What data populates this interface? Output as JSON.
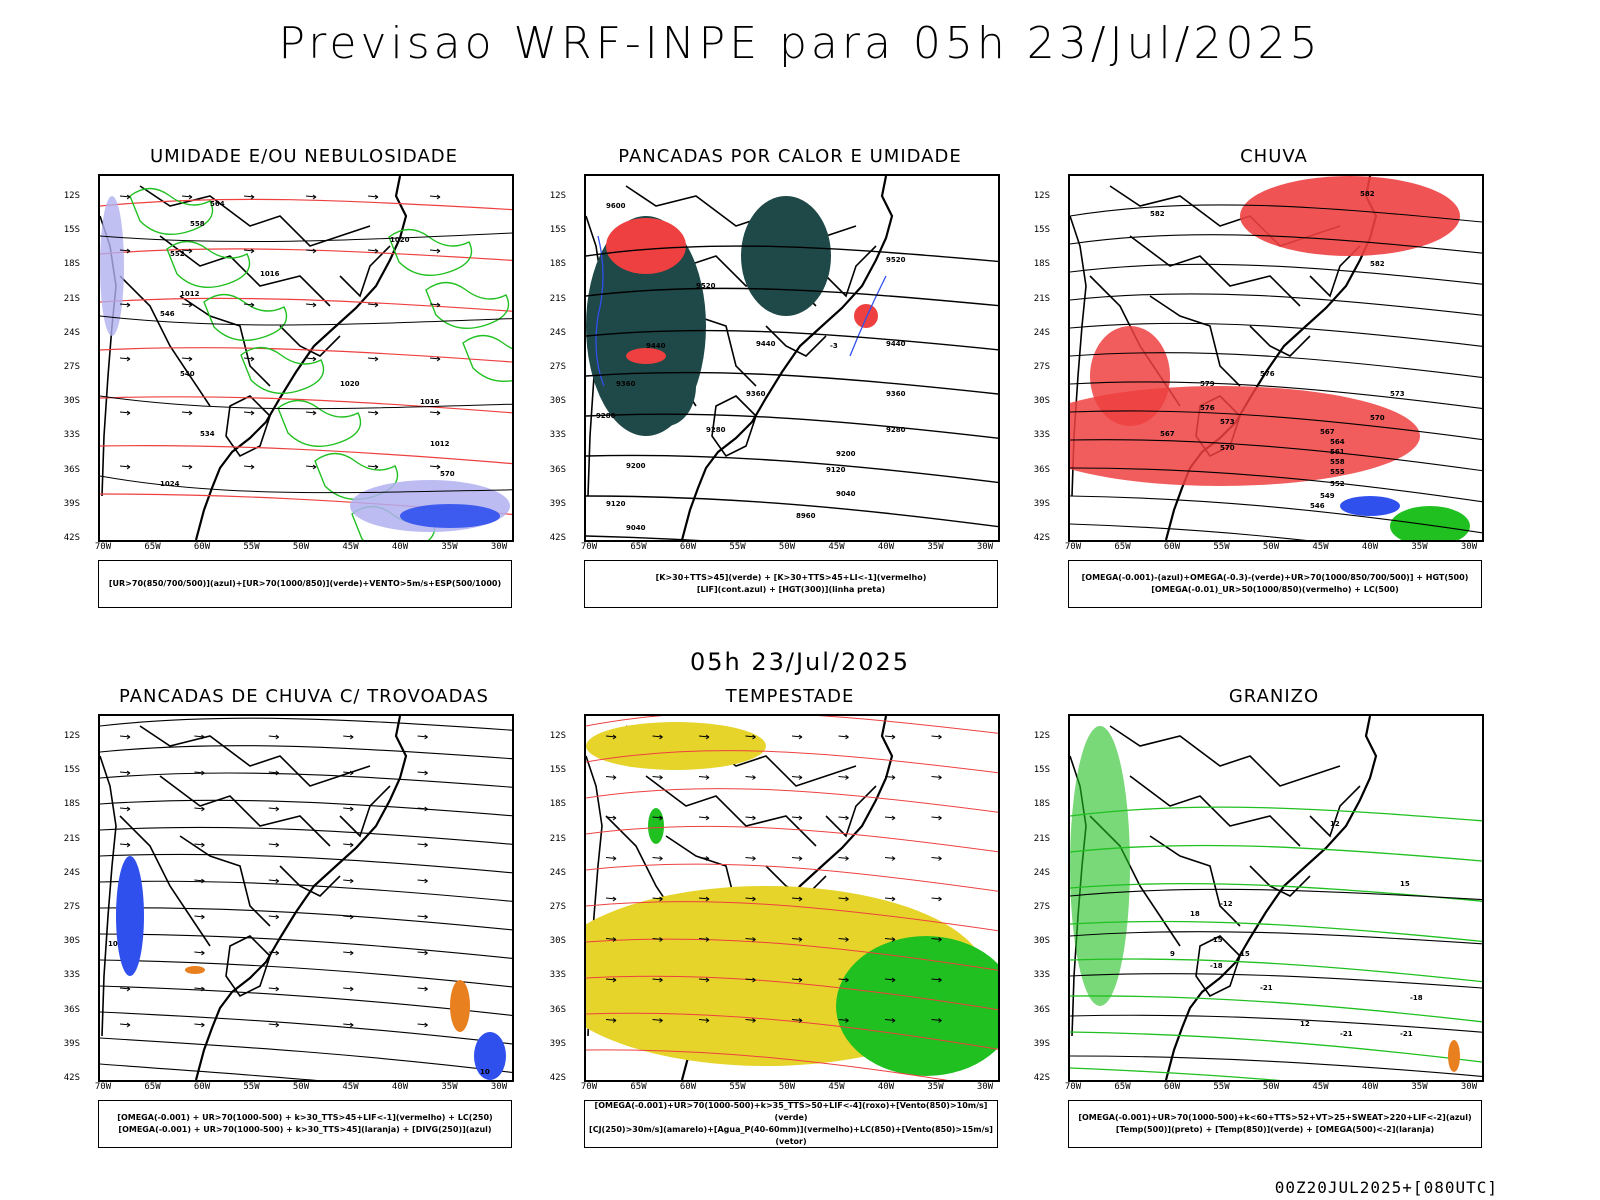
{
  "title": "Previsao WRF-INPE  para 05h 23/Jul/2025",
  "mid_date": "05h 23/Jul/2025",
  "footer": "00Z20JUL2025+[080UTC]",
  "latitudes": [
    "12S",
    "15S",
    "18S",
    "21S",
    "24S",
    "27S",
    "30S",
    "33S",
    "36S",
    "39S",
    "42S"
  ],
  "longitudes": [
    "70W",
    "65W",
    "60W",
    "55W",
    "50W",
    "45W",
    "40W",
    "35W",
    "30W"
  ],
  "colors": {
    "red": "#ee4040",
    "green": "#20c020",
    "blue": "#3050ee",
    "lavender": "#b0b0f0",
    "dark_teal": "#1f4848",
    "yellow": "#e6d42a",
    "orange": "#e88020",
    "black": "#000000"
  },
  "panels": [
    {
      "id": "p1",
      "title": "UMIDADE E/OU NEBULOSIDADE",
      "legend": [
        "[UR>70(850/700/500)](azul)+[UR>70(1000/850)](verde)+VENTO>5m/s+ESP(500/1000)"
      ],
      "contour_labels": [
        "1020",
        "1016",
        "1012",
        "1024",
        "1020",
        "1016",
        "1012",
        "570",
        "564",
        "558",
        "552",
        "546",
        "540",
        "534"
      ]
    },
    {
      "id": "p2",
      "title": "PANCADAS POR CALOR E UMIDADE",
      "legend": [
        "[K>30+TTS>45](verde) + [K>30+TTS>45+LI<-1](vermelho)",
        "[LIF](cont.azul) + [HGT(300)](linha preta)"
      ],
      "contour_labels": [
        "9600",
        "9520",
        "9520",
        "9440",
        "9440",
        "9440",
        "9360",
        "9360",
        "9360",
        "9280",
        "9280",
        "9280",
        "9200",
        "9200",
        "9120",
        "9120",
        "9040",
        "9040",
        "8960",
        "-3"
      ]
    },
    {
      "id": "p3",
      "title": "CHUVA",
      "legend": [
        "[OMEGA(-0.001)-(azul)+OMEGA(-0.3)-(verde)+UR>70(1000/850/700/500)] + HGT(500)",
        "[OMEGA(-0.01)_UR>50(1000/850)(vermelho) + LC(500)"
      ],
      "contour_labels": [
        "582",
        "582",
        "579",
        "576",
        "573",
        "570",
        "567",
        "564",
        "561",
        "558",
        "555",
        "552",
        "549",
        "546",
        "573",
        "570",
        "567",
        "582",
        "576"
      ]
    },
    {
      "id": "p4",
      "title": "PANCADAS DE CHUVA C/ TROVOADAS",
      "legend": [
        "[OMEGA(-0.001) + UR>70(1000-500) + k>30_TTS>45+LIF<-1](vermelho) + LC(250)",
        "[OMEGA(-0.001) + UR>70(1000-500) + k>30_TTS>45](laranja) + [DIVG(250)](azul)"
      ],
      "contour_labels": [
        "10",
        "10"
      ]
    },
    {
      "id": "p5",
      "title": "TEMPESTADE",
      "legend": [
        "[OMEGA(-0.001)+UR>70(1000-500)+k>35_TTS>50+LIF<-4](roxo)+[Vento(850)>10m/s](verde)",
        "[CJ(250)>30m/s](amarelo)+[Agua_P(40-60mm)](vermelho)+LC(850)+[Vento(850)>15m/s](vetor)"
      ],
      "contour_labels": []
    },
    {
      "id": "p6",
      "title": "GRANIZO",
      "legend": [
        "[OMEGA(-0.001)+UR>70(1000-500)+k<60+TTS>52+VT>25+SWEAT>220+LIF<-2](azul)",
        "[Temp(500)](preto) + [Temp(850)](verde) + [OMEGA(500)<-2](laranja)"
      ],
      "contour_labels": [
        "-12",
        "-15",
        "-18",
        "-21",
        "-21",
        "-18",
        "-21",
        "15",
        "12",
        "9",
        "12",
        "15",
        "18"
      ]
    }
  ]
}
